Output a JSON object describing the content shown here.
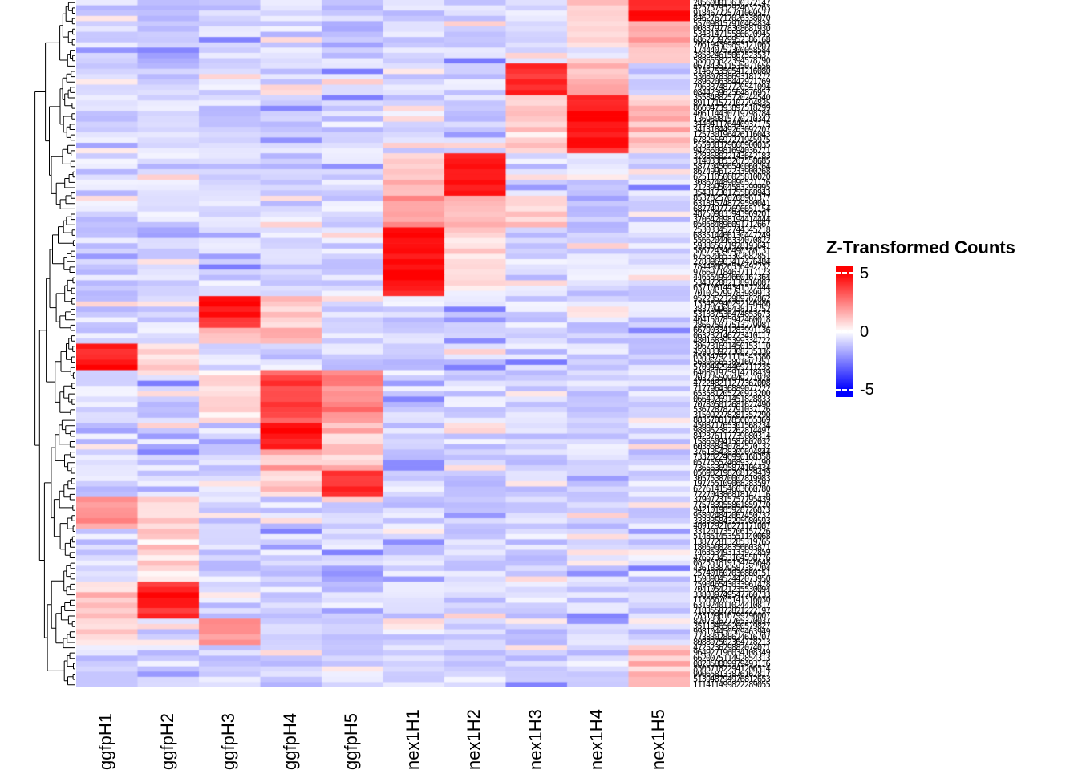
{
  "chart_data": {
    "type": "heatmap",
    "columns": [
      "ggfpH1",
      "ggfpH2",
      "ggfpH3",
      "ggfpH4",
      "ggfpH5",
      "nex1H1",
      "nex1H2",
      "nex1H3",
      "nex1H4",
      "nex1H5"
    ],
    "column_keys": [
      "g1",
      "g2",
      "g3",
      "g4",
      "g5",
      "n1",
      "n2",
      "n3",
      "n4",
      "n5"
    ],
    "n_rows": 130,
    "value_range": [
      -5,
      5
    ],
    "base_value": -0.9,
    "segments": [
      {
        "count": 4,
        "cells": {
          "n5": 4.5,
          "n4": 1.2
        }
      },
      {
        "count": 5,
        "cells": {
          "n5": 1.8,
          "n4": 0.8,
          "g5": -1.6
        }
      },
      {
        "count": 3,
        "cells": {
          "g2": -2.0,
          "n5": 1.0
        }
      },
      {
        "count": 6,
        "cells": {
          "n3": 4.2,
          "n4": 1.5
        }
      },
      {
        "count": 11,
        "cells": {
          "n4": 4.6,
          "n3": 1.0,
          "n5": 1.4
        }
      },
      {
        "count": 8,
        "cells": {
          "n2": 4.5,
          "n1": 1.2
        }
      },
      {
        "count": 6,
        "cells": {
          "n1": 1.8,
          "n2": 1.2,
          "n3": 0.8
        }
      },
      {
        "count": 13,
        "cells": {
          "n1": 4.8,
          "n2": 0.5
        }
      },
      {
        "count": 6,
        "cells": {
          "g3": 4.3,
          "g4": 1.0
        }
      },
      {
        "count": 3,
        "cells": {
          "g3": 1.5,
          "g4": 1.8
        }
      },
      {
        "count": 5,
        "cells": {
          "g1": 4.6,
          "g2": 1.0
        }
      },
      {
        "count": 10,
        "cells": {
          "g4": 3.5,
          "g5": 2.2,
          "g3": 0.8
        }
      },
      {
        "count": 5,
        "cells": {
          "g4": 4.8,
          "g5": 1.2
        }
      },
      {
        "count": 4,
        "cells": {
          "g4": 1.5,
          "g5": 1.0
        }
      },
      {
        "count": 5,
        "cells": {
          "g5": 4.2,
          "g4": 0.8
        }
      },
      {
        "count": 6,
        "cells": {
          "g1": 2.2,
          "g2": 1.0
        }
      },
      {
        "count": 10,
        "cells": {
          "g2": 0.8
        }
      },
      {
        "count": 7,
        "cells": {
          "g2": 4.3,
          "g1": 1.0
        }
      },
      {
        "count": 5,
        "cells": {
          "g3": 2.2,
          "g1": 0.8
        }
      },
      {
        "count": 8,
        "cells": {
          "n5": 1.2
        }
      }
    ],
    "legend": {
      "title": "Z-Transformed Counts",
      "ticks": [
        "5",
        "0",
        "-5"
      ],
      "tick_values": [
        5,
        0,
        -5
      ],
      "colors": {
        "max": "#FF0000",
        "mid": "#FFFFFF",
        "min": "#0000FF"
      }
    },
    "row_labels": {
      "illegible": true,
      "charset": "0123456789",
      "length": 18
    },
    "row_dendrogram": true
  }
}
